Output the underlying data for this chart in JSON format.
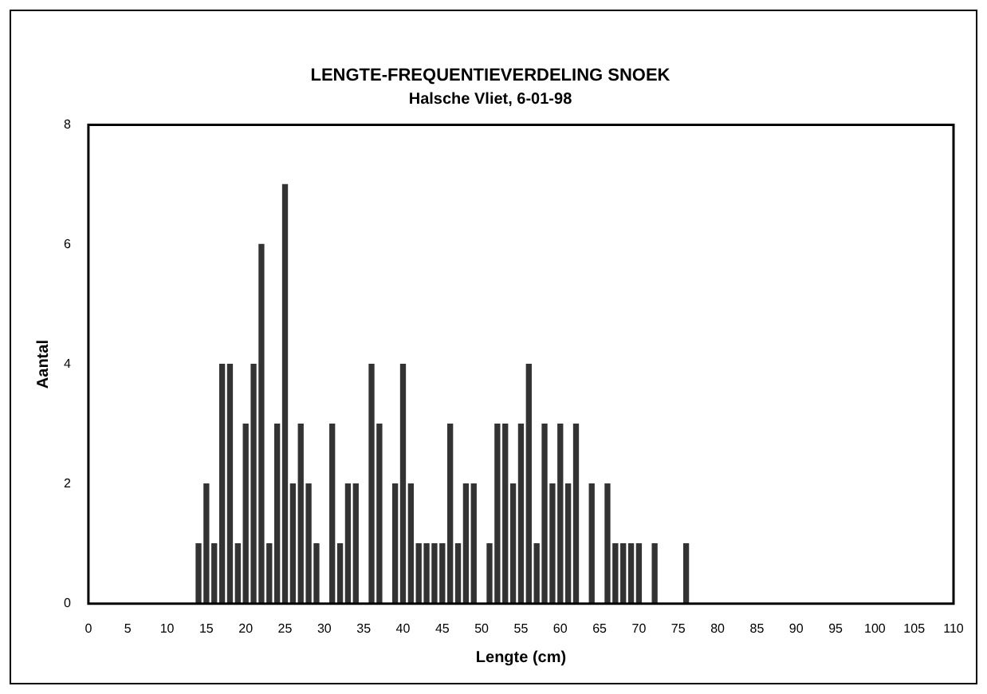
{
  "chart_data": {
    "type": "bar",
    "title": "LENGTE-FREQUENTIEVERDELING SNOEK",
    "subtitle": "Halsche Vliet, 6-01-98",
    "xlabel": "Lengte (cm)",
    "ylabel": "Aantal",
    "x": [
      14,
      15,
      16,
      17,
      18,
      19,
      20,
      21,
      22,
      23,
      24,
      25,
      26,
      27,
      28,
      29,
      31,
      32,
      33,
      34,
      36,
      37,
      39,
      40,
      41,
      42,
      43,
      44,
      45,
      46,
      47,
      48,
      49,
      51,
      52,
      53,
      54,
      55,
      56,
      57,
      58,
      59,
      60,
      61,
      62,
      64,
      66,
      67,
      68,
      69,
      70,
      72,
      76
    ],
    "values": [
      1,
      2,
      1,
      4,
      4,
      1,
      3,
      4,
      6,
      1,
      3,
      7,
      2,
      3,
      2,
      1,
      3,
      1,
      2,
      2,
      4,
      3,
      2,
      4,
      2,
      1,
      1,
      1,
      1,
      3,
      1,
      2,
      2,
      1,
      3,
      3,
      2,
      3,
      4,
      1,
      3,
      2,
      3,
      2,
      3,
      2,
      2,
      1,
      1,
      1,
      1,
      1,
      1
    ],
    "color": "#333333",
    "xlim": [
      0,
      110
    ],
    "xticks": [
      0,
      5,
      10,
      15,
      20,
      25,
      30,
      35,
      40,
      45,
      50,
      55,
      60,
      65,
      70,
      75,
      80,
      85,
      90,
      95,
      100,
      105,
      110
    ],
    "ylim": [
      0,
      8
    ],
    "yticks": [
      0,
      2,
      4,
      6,
      8
    ],
    "grid": false,
    "legend": false
  }
}
